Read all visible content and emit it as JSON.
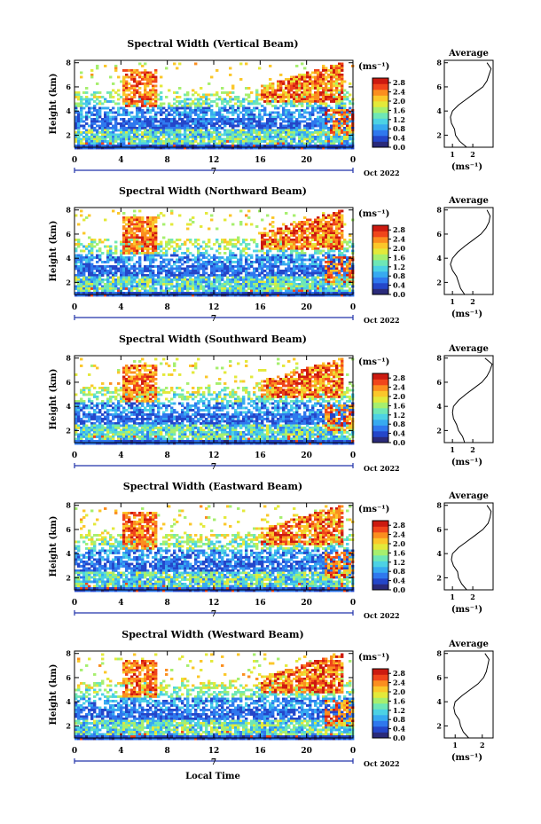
{
  "figure": {
    "x_axis_title": "Local Time"
  },
  "colormap": [
    "#2a2a7a",
    "#2446c9",
    "#2f78ee",
    "#37aaf0",
    "#4cd2e4",
    "#6ee7b6",
    "#a6ef6e",
    "#e3e93a",
    "#fbc72a",
    "#fb8e1f",
    "#f0451b",
    "#cc1a10"
  ],
  "chart_data": [
    {
      "type": "heatmap",
      "title": "Spectral Width (Vertical Beam)",
      "xlabel": "",
      "ylabel": "Height (km)",
      "x_ticks": [
        "0",
        "4",
        "8",
        "12",
        "16",
        "20",
        "0"
      ],
      "x_range": [
        0,
        24
      ],
      "y_ticks": [
        "2",
        "4",
        "6",
        "8"
      ],
      "y_range": [
        1,
        8.2
      ],
      "date_marker": "7",
      "date_label": "Oct 2022",
      "colorbar": {
        "unit": "(ms⁻¹)",
        "ticks": [
          "0.0",
          "0.4",
          "0.8",
          "1.2",
          "1.6",
          "2.0",
          "2.4",
          "2.8"
        ],
        "range": [
          0,
          3.0
        ]
      },
      "profile": {
        "title": "Average",
        "xlabel": "(ms⁻¹)",
        "x_ticks": [
          "1",
          "2"
        ],
        "x_range": [
          0.6,
          3.0
        ],
        "heights": [
          1.0,
          1.5,
          2.0,
          2.5,
          3.0,
          3.5,
          4.0,
          4.5,
          5.0,
          5.5,
          6.0,
          6.5,
          7.0,
          7.5,
          8.0
        ],
        "values": [
          1.7,
          1.35,
          1.15,
          1.1,
          0.95,
          0.9,
          1.0,
          1.3,
          1.7,
          2.1,
          2.5,
          2.7,
          2.8,
          2.9,
          2.7
        ]
      }
    },
    {
      "type": "heatmap",
      "title": "Spectral Width (Northward Beam)",
      "xlabel": "",
      "ylabel": "Height (km)",
      "x_ticks": [
        "0",
        "4",
        "8",
        "12",
        "16",
        "20",
        "0"
      ],
      "x_range": [
        0,
        24
      ],
      "y_ticks": [
        "2",
        "4",
        "6",
        "8"
      ],
      "y_range": [
        1,
        8.2
      ],
      "date_marker": "7",
      "date_label": "Oct 2022",
      "colorbar": {
        "unit": "(ms⁻¹)",
        "ticks": [
          "0.0",
          "0.4",
          "0.8",
          "1.2",
          "1.6",
          "2.0",
          "2.4",
          "2.8"
        ],
        "range": [
          0,
          3.0
        ]
      },
      "profile": {
        "title": "Average",
        "xlabel": "(ms⁻¹)",
        "x_ticks": [
          "1",
          "2"
        ],
        "x_range": [
          0.6,
          3.0
        ],
        "heights": [
          1.0,
          1.5,
          2.0,
          2.5,
          3.0,
          3.5,
          4.0,
          4.5,
          5.0,
          5.5,
          6.0,
          6.5,
          7.0,
          7.5,
          8.0
        ],
        "values": [
          1.6,
          1.4,
          1.3,
          1.2,
          1.0,
          0.9,
          1.0,
          1.25,
          1.6,
          2.0,
          2.4,
          2.65,
          2.8,
          2.85,
          2.7
        ]
      }
    },
    {
      "type": "heatmap",
      "title": "Spectral Width (Southward Beam)",
      "xlabel": "",
      "ylabel": "Height (km)",
      "x_ticks": [
        "0",
        "4",
        "8",
        "12",
        "16",
        "20",
        "0"
      ],
      "x_range": [
        0,
        24
      ],
      "y_ticks": [
        "2",
        "4",
        "6",
        "8"
      ],
      "y_range": [
        1,
        8.2
      ],
      "date_marker": "7",
      "date_label": "Oct 2022",
      "colorbar": {
        "unit": "(ms⁻¹)",
        "ticks": [
          "0.0",
          "0.4",
          "0.8",
          "1.2",
          "1.6",
          "2.0",
          "2.4",
          "2.8"
        ],
        "range": [
          0,
          3.0
        ]
      },
      "profile": {
        "title": "Average",
        "xlabel": "(ms⁻¹)",
        "x_ticks": [
          "1",
          "2"
        ],
        "x_range": [
          0.6,
          3.0
        ],
        "heights": [
          1.0,
          1.5,
          2.0,
          2.5,
          3.0,
          3.5,
          4.0,
          4.5,
          5.0,
          5.5,
          6.0,
          6.5,
          7.0,
          7.5,
          8.0
        ],
        "values": [
          1.6,
          1.5,
          1.3,
          1.2,
          1.05,
          1.0,
          1.05,
          1.3,
          1.65,
          2.05,
          2.45,
          2.7,
          2.85,
          2.95,
          2.6
        ]
      }
    },
    {
      "type": "heatmap",
      "title": "Spectral Width (Eastward Beam)",
      "xlabel": "",
      "ylabel": "Height (km)",
      "x_ticks": [
        "0",
        "4",
        "8",
        "12",
        "16",
        "20",
        "0"
      ],
      "x_range": [
        0,
        24
      ],
      "y_ticks": [
        "2",
        "4",
        "6",
        "8"
      ],
      "y_range": [
        1,
        8.2
      ],
      "date_marker": "7",
      "date_label": "Oct 2022",
      "colorbar": {
        "unit": "(ms⁻¹)",
        "ticks": [
          "0.0",
          "0.4",
          "0.8",
          "1.2",
          "1.6",
          "2.0",
          "2.4",
          "2.8"
        ],
        "range": [
          0,
          3.0
        ]
      },
      "profile": {
        "title": "Average",
        "xlabel": "(ms⁻¹)",
        "x_ticks": [
          "1",
          "2"
        ],
        "x_range": [
          0.6,
          3.0
        ],
        "heights": [
          1.0,
          1.5,
          2.0,
          2.5,
          3.0,
          3.5,
          4.0,
          4.5,
          5.0,
          5.5,
          6.0,
          6.5,
          7.0,
          7.5,
          8.0
        ],
        "values": [
          1.7,
          1.45,
          1.3,
          1.25,
          1.05,
          0.95,
          1.0,
          1.3,
          1.7,
          2.1,
          2.5,
          2.75,
          2.85,
          2.9,
          2.7
        ]
      }
    },
    {
      "type": "heatmap",
      "title": "Spectral Width (Westward Beam)",
      "xlabel": "",
      "ylabel": "Height (km)",
      "x_ticks": [
        "0",
        "4",
        "8",
        "12",
        "16",
        "20",
        "0"
      ],
      "x_range": [
        0,
        24
      ],
      "y_ticks": [
        "2",
        "4",
        "6",
        "8"
      ],
      "y_range": [
        1,
        8.2
      ],
      "date_marker": "7",
      "date_label": "Oct 2022",
      "colorbar": {
        "unit": "(ms⁻¹)",
        "ticks": [
          "0.0",
          "0.4",
          "0.8",
          "1.2",
          "1.6",
          "2.0",
          "2.4",
          "2.8"
        ],
        "range": [
          0,
          3.0
        ]
      },
      "profile": {
        "title": "Average",
        "xlabel": "(ms⁻¹)",
        "x_ticks": [
          "1",
          "2"
        ],
        "x_range": [
          0.6,
          2.4
        ],
        "heights": [
          1.0,
          1.5,
          2.0,
          2.5,
          3.0,
          3.5,
          4.0,
          4.5,
          5.0,
          5.5,
          6.0,
          6.5,
          7.0,
          7.5,
          8.0
        ],
        "values": [
          1.5,
          1.3,
          1.2,
          1.15,
          1.0,
          0.95,
          1.0,
          1.25,
          1.55,
          1.85,
          2.05,
          2.15,
          2.2,
          2.25,
          2.1
        ]
      }
    }
  ]
}
